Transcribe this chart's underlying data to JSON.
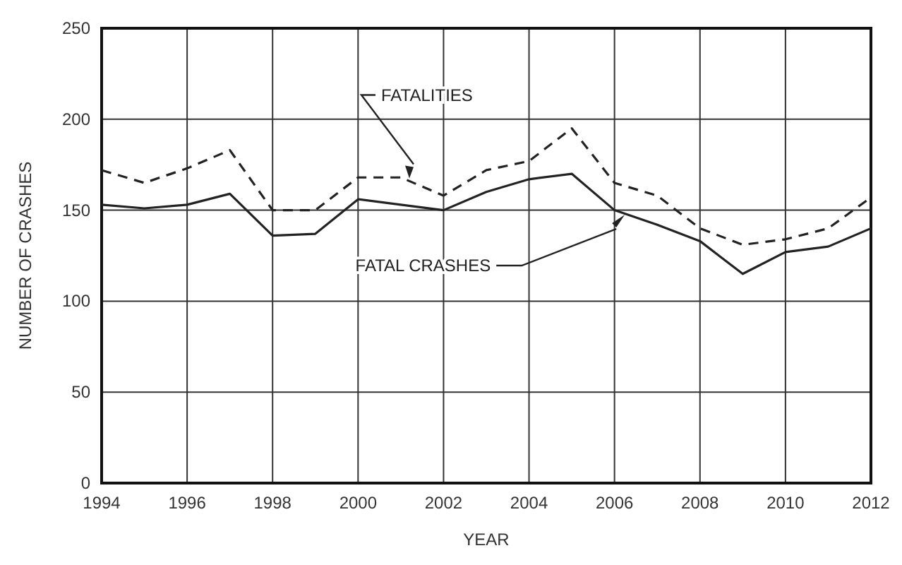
{
  "chart_data": {
    "type": "line",
    "xlabel": "YEAR",
    "ylabel": "NUMBER OF CRASHES",
    "x": [
      1994,
      1995,
      1996,
      1997,
      1998,
      1999,
      2000,
      2001,
      2002,
      2003,
      2004,
      2005,
      2006,
      2007,
      2008,
      2009,
      2010,
      2011,
      2012
    ],
    "series": [
      {
        "color": "#222222",
        "line_style": "dashed",
        "values": [
          172,
          165,
          173,
          183,
          150,
          150,
          168,
          168,
          158,
          172,
          177,
          195,
          165,
          158,
          140,
          131,
          134,
          140,
          157
        ]
      },
      {
        "color": "#222222",
        "line_style": "solid",
        "values": [
          153,
          151,
          153,
          159,
          136,
          137,
          156,
          153,
          150,
          160,
          167,
          170,
          150,
          142,
          133,
          115,
          127,
          130,
          140
        ]
      }
    ],
    "xlim": [
      1994,
      2012
    ],
    "xticks": [
      1994,
      1996,
      1998,
      2000,
      2002,
      2004,
      2006,
      2008,
      2010,
      2012
    ],
    "ylim": [
      0,
      250
    ],
    "yticks": [
      0,
      50,
      100,
      150,
      200,
      250
    ],
    "grid": true,
    "marker": "none",
    "annotations": [
      "FATALITIES",
      "FATAL CRASHES"
    ]
  }
}
